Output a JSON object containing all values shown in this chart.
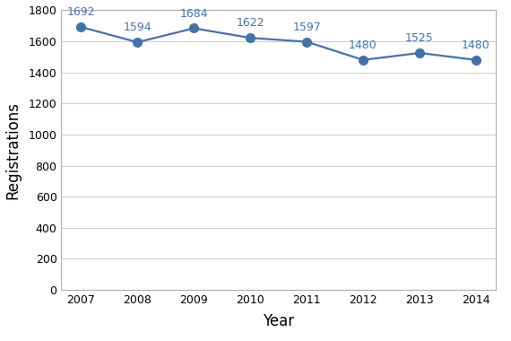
{
  "years": [
    2007,
    2008,
    2009,
    2010,
    2011,
    2012,
    2013,
    2014
  ],
  "values": [
    1692,
    1594,
    1684,
    1622,
    1597,
    1480,
    1525,
    1480
  ],
  "line_color": "#4472a8",
  "marker_color": "#4472a8",
  "xlabel": "Year",
  "ylabel": "Registrations",
  "ylim": [
    0,
    1800
  ],
  "yticks": [
    0,
    200,
    400,
    600,
    800,
    1000,
    1200,
    1400,
    1600,
    1800
  ],
  "grid_color": "#d0d0d0",
  "background_color": "#ffffff",
  "plot_bg_color": "#ffffff",
  "border_color": "#b0b0b0",
  "tick_label_fontsize": 9,
  "axis_label_fontsize": 12,
  "annotation_fontsize": 9,
  "annotation_color": "#4472a8"
}
